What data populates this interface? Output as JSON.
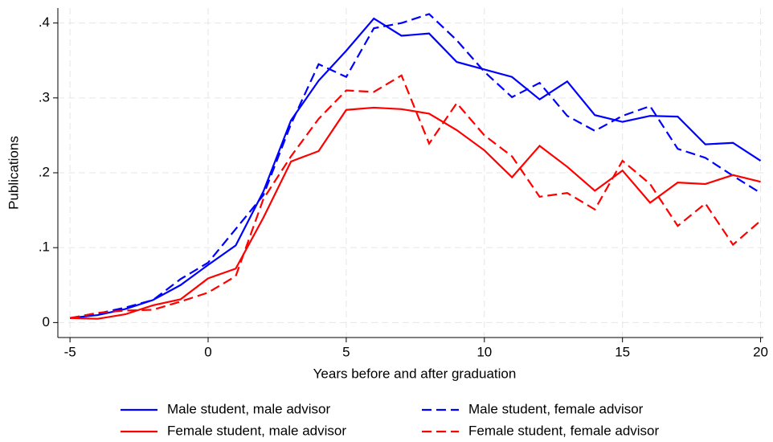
{
  "chart_data": {
    "type": "line",
    "xlabel": "Years before and after graduation",
    "ylabel": "Publications",
    "x": [
      -5,
      -4,
      -3,
      -2,
      -1,
      0,
      1,
      2,
      3,
      4,
      5,
      6,
      7,
      8,
      9,
      10,
      11,
      12,
      13,
      14,
      15,
      16,
      17,
      18,
      19,
      20
    ],
    "series": [
      {
        "name": "Male student, male advisor",
        "color": "#0000ff",
        "style": "solid",
        "values": [
          0.006,
          0.01,
          0.018,
          0.03,
          0.05,
          0.077,
          0.103,
          0.175,
          0.27,
          0.323,
          0.363,
          0.406,
          0.383,
          0.386,
          0.348,
          0.338,
          0.328,
          0.298,
          0.322,
          0.277,
          0.268,
          0.276,
          0.275,
          0.238,
          0.24,
          0.216
        ]
      },
      {
        "name": "Male student, female advisor",
        "color": "#0000ff",
        "style": "dashed",
        "values": [
          0.006,
          0.012,
          0.02,
          0.03,
          0.058,
          0.08,
          0.125,
          0.17,
          0.265,
          0.345,
          0.328,
          0.393,
          0.4,
          0.412,
          0.377,
          0.335,
          0.301,
          0.32,
          0.276,
          0.256,
          0.276,
          0.289,
          0.232,
          0.22,
          0.196,
          0.173
        ]
      },
      {
        "name": "Female student, male advisor",
        "color": "#ff0000",
        "style": "solid",
        "values": [
          0.006,
          0.005,
          0.011,
          0.023,
          0.031,
          0.059,
          0.072,
          0.14,
          0.215,
          0.229,
          0.284,
          0.287,
          0.285,
          0.279,
          0.257,
          0.23,
          0.194,
          0.236,
          0.208,
          0.176,
          0.203,
          0.16,
          0.187,
          0.185,
          0.197,
          0.188
        ]
      },
      {
        "name": "Female student, female advisor",
        "color": "#ff0000",
        "style": "dashed",
        "values": [
          0.006,
          0.013,
          0.016,
          0.017,
          0.028,
          0.04,
          0.062,
          0.165,
          0.222,
          0.272,
          0.31,
          0.308,
          0.33,
          0.239,
          0.293,
          0.25,
          0.222,
          0.168,
          0.173,
          0.151,
          0.216,
          0.185,
          0.129,
          0.159,
          0.104,
          0.136
        ]
      }
    ],
    "xlim": [
      -5.44,
      20.1
    ],
    "ylim": [
      -0.02,
      0.42
    ],
    "xticks": [
      -5,
      0,
      5,
      10,
      15,
      20
    ],
    "yticks": [
      0,
      {
        "value": 0.1,
        "label": ".1"
      },
      {
        "value": 0.2,
        "label": ".2"
      },
      {
        "value": 0.3,
        "label": ".3"
      },
      {
        "value": 0.4,
        "label": ".4"
      }
    ],
    "grid": true,
    "legend": "bottom"
  }
}
